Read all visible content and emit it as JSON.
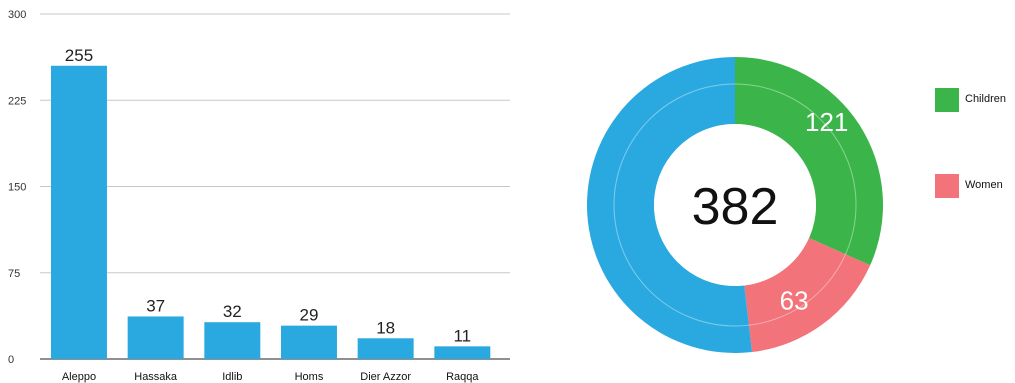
{
  "chart_data": [
    {
      "type": "bar",
      "categories": [
        "Aleppo",
        "Hassaka",
        "Idlib",
        "Homs",
        "Dier Azzor",
        "Raqqa"
      ],
      "values": [
        255,
        37,
        32,
        29,
        18,
        11
      ],
      "yticks": [
        "0",
        "75",
        "150",
        "225",
        "300"
      ],
      "ylim": [
        0,
        300
      ],
      "grid": true,
      "color": "#2aa9e0"
    },
    {
      "type": "pie",
      "center_label": "382",
      "slices": [
        {
          "name": "Children",
          "value": 121,
          "label": "121",
          "color": "#3bb54a"
        },
        {
          "name": "Women",
          "value": 63,
          "label": "63",
          "color": "#f2737a"
        },
        {
          "name": "",
          "value": 198,
          "label": "",
          "color": "#2aa9e0"
        }
      ],
      "legend": [
        "Children",
        "Women"
      ],
      "legend_position": "right"
    }
  ]
}
